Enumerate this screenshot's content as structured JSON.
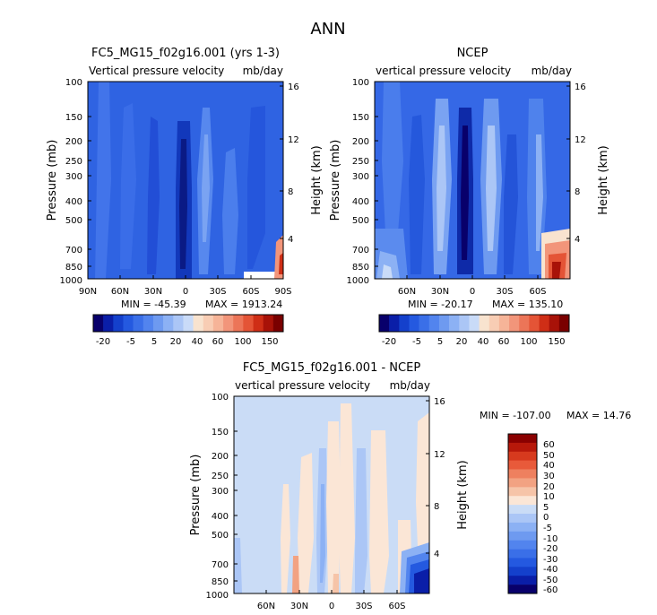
{
  "figure_title": "ANN",
  "chart_data": [
    {
      "type": "heatmap",
      "title": "FC5_MG15_f02g16.001 (yrs 1-3)",
      "subtitle_left": "Vertical pressure velocity",
      "subtitle_right": "mb/day",
      "ylabel": "Pressure (mb)",
      "y2label": "Height (km)",
      "x_ticks": [
        "90N",
        "60N",
        "30N",
        "0",
        "30S",
        "60S",
        "90S"
      ],
      "x_tick_values": [
        90,
        60,
        30,
        0,
        -30,
        -60,
        -90
      ],
      "y_ticks": [
        "100",
        "150",
        "200",
        "250",
        "300",
        "400",
        "500",
        "700",
        "850",
        "1000"
      ],
      "y_tick_values": [
        100,
        150,
        200,
        250,
        300,
        400,
        500,
        700,
        850,
        1000
      ],
      "y2_ticks": [
        "16",
        "12",
        "8",
        "4"
      ],
      "y2_tick_values": [
        16,
        12,
        8,
        4
      ],
      "xlim": [
        90,
        -90
      ],
      "ylim": [
        100,
        1000
      ],
      "y_scale": "log",
      "min_label": "MIN =  -45.39",
      "max_label": "MAX = 1913.24"
    },
    {
      "type": "heatmap",
      "title": "NCEP",
      "subtitle_left": "vertical pressure velocity",
      "subtitle_right": "mb/day",
      "ylabel": "Pressure (mb)",
      "y2label": "Height (km)",
      "x_ticks": [
        "60N",
        "30N",
        "0",
        "30S",
        "60S"
      ],
      "x_tick_values": [
        60,
        30,
        0,
        -30,
        -60
      ],
      "y_ticks": [
        "100",
        "150",
        "200",
        "250",
        "300",
        "400",
        "500",
        "700",
        "850",
        "1000"
      ],
      "y_tick_values": [
        100,
        150,
        200,
        250,
        300,
        400,
        500,
        700,
        850,
        1000
      ],
      "y2_ticks": [
        "16",
        "12",
        "8",
        "4"
      ],
      "y2_tick_values": [
        16,
        12,
        8,
        4
      ],
      "xlim": [
        90,
        -90
      ],
      "ylim": [
        100,
        1000
      ],
      "y_scale": "log",
      "min_label": "MIN =  -20.17",
      "max_label": "MAX =  135.10"
    },
    {
      "type": "heatmap",
      "title": "FC5_MG15_f02g16.001 - NCEP",
      "subtitle_left": "vertical pressure velocity",
      "subtitle_right": "mb/day",
      "ylabel": "Pressure (mb)",
      "y2label": "Height (km)",
      "x_ticks": [
        "60N",
        "30N",
        "0",
        "30S",
        "60S"
      ],
      "x_tick_values": [
        60,
        30,
        0,
        -30,
        -60
      ],
      "y_ticks": [
        "100",
        "150",
        "200",
        "250",
        "300",
        "400",
        "500",
        "700",
        "850",
        "1000"
      ],
      "y_tick_values": [
        100,
        150,
        200,
        250,
        300,
        400,
        500,
        700,
        850,
        1000
      ],
      "y2_ticks": [
        "16",
        "12",
        "8",
        "4"
      ],
      "y2_tick_values": [
        16,
        12,
        8,
        4
      ],
      "xlim": [
        90,
        -90
      ],
      "ylim": [
        100,
        1000
      ],
      "y_scale": "log",
      "min_label": "MIN = -107.00",
      "max_label": "MAX =  14.76"
    }
  ],
  "colorbar_top": {
    "colors": [
      "#08006b",
      "#0a1ea8",
      "#1440cc",
      "#2459e0",
      "#3a6fe8",
      "#5284ee",
      "#6e9af0",
      "#8cb1f4",
      "#abc6f6",
      "#c9dbf8",
      "#f8e3cf",
      "#f8cdb4",
      "#f6b498",
      "#f2957a",
      "#ec7558",
      "#e45436",
      "#cf2e16",
      "#a81208",
      "#7a0000"
    ],
    "labels": [
      "-20",
      "-5",
      "5",
      "20",
      "40",
      "60",
      "100",
      "150"
    ]
  },
  "colorbar_diff": {
    "colors": [
      "#08006b",
      "#0a1ea8",
      "#1440cc",
      "#2459e0",
      "#3a6fe8",
      "#5284ee",
      "#6e9af0",
      "#8cb1f4",
      "#abc6f6",
      "#cadcf6",
      "#fbe6d6",
      "#f6c4a8",
      "#f2a282",
      "#ee805f",
      "#e85a3a",
      "#d73a1e",
      "#b7180a",
      "#8a0000"
    ],
    "labels": [
      "60",
      "50",
      "40",
      "30",
      "20",
      "10",
      "5",
      "0",
      "-5",
      "-10",
      "-20",
      "-30",
      "-40",
      "-50",
      "-60"
    ]
  }
}
